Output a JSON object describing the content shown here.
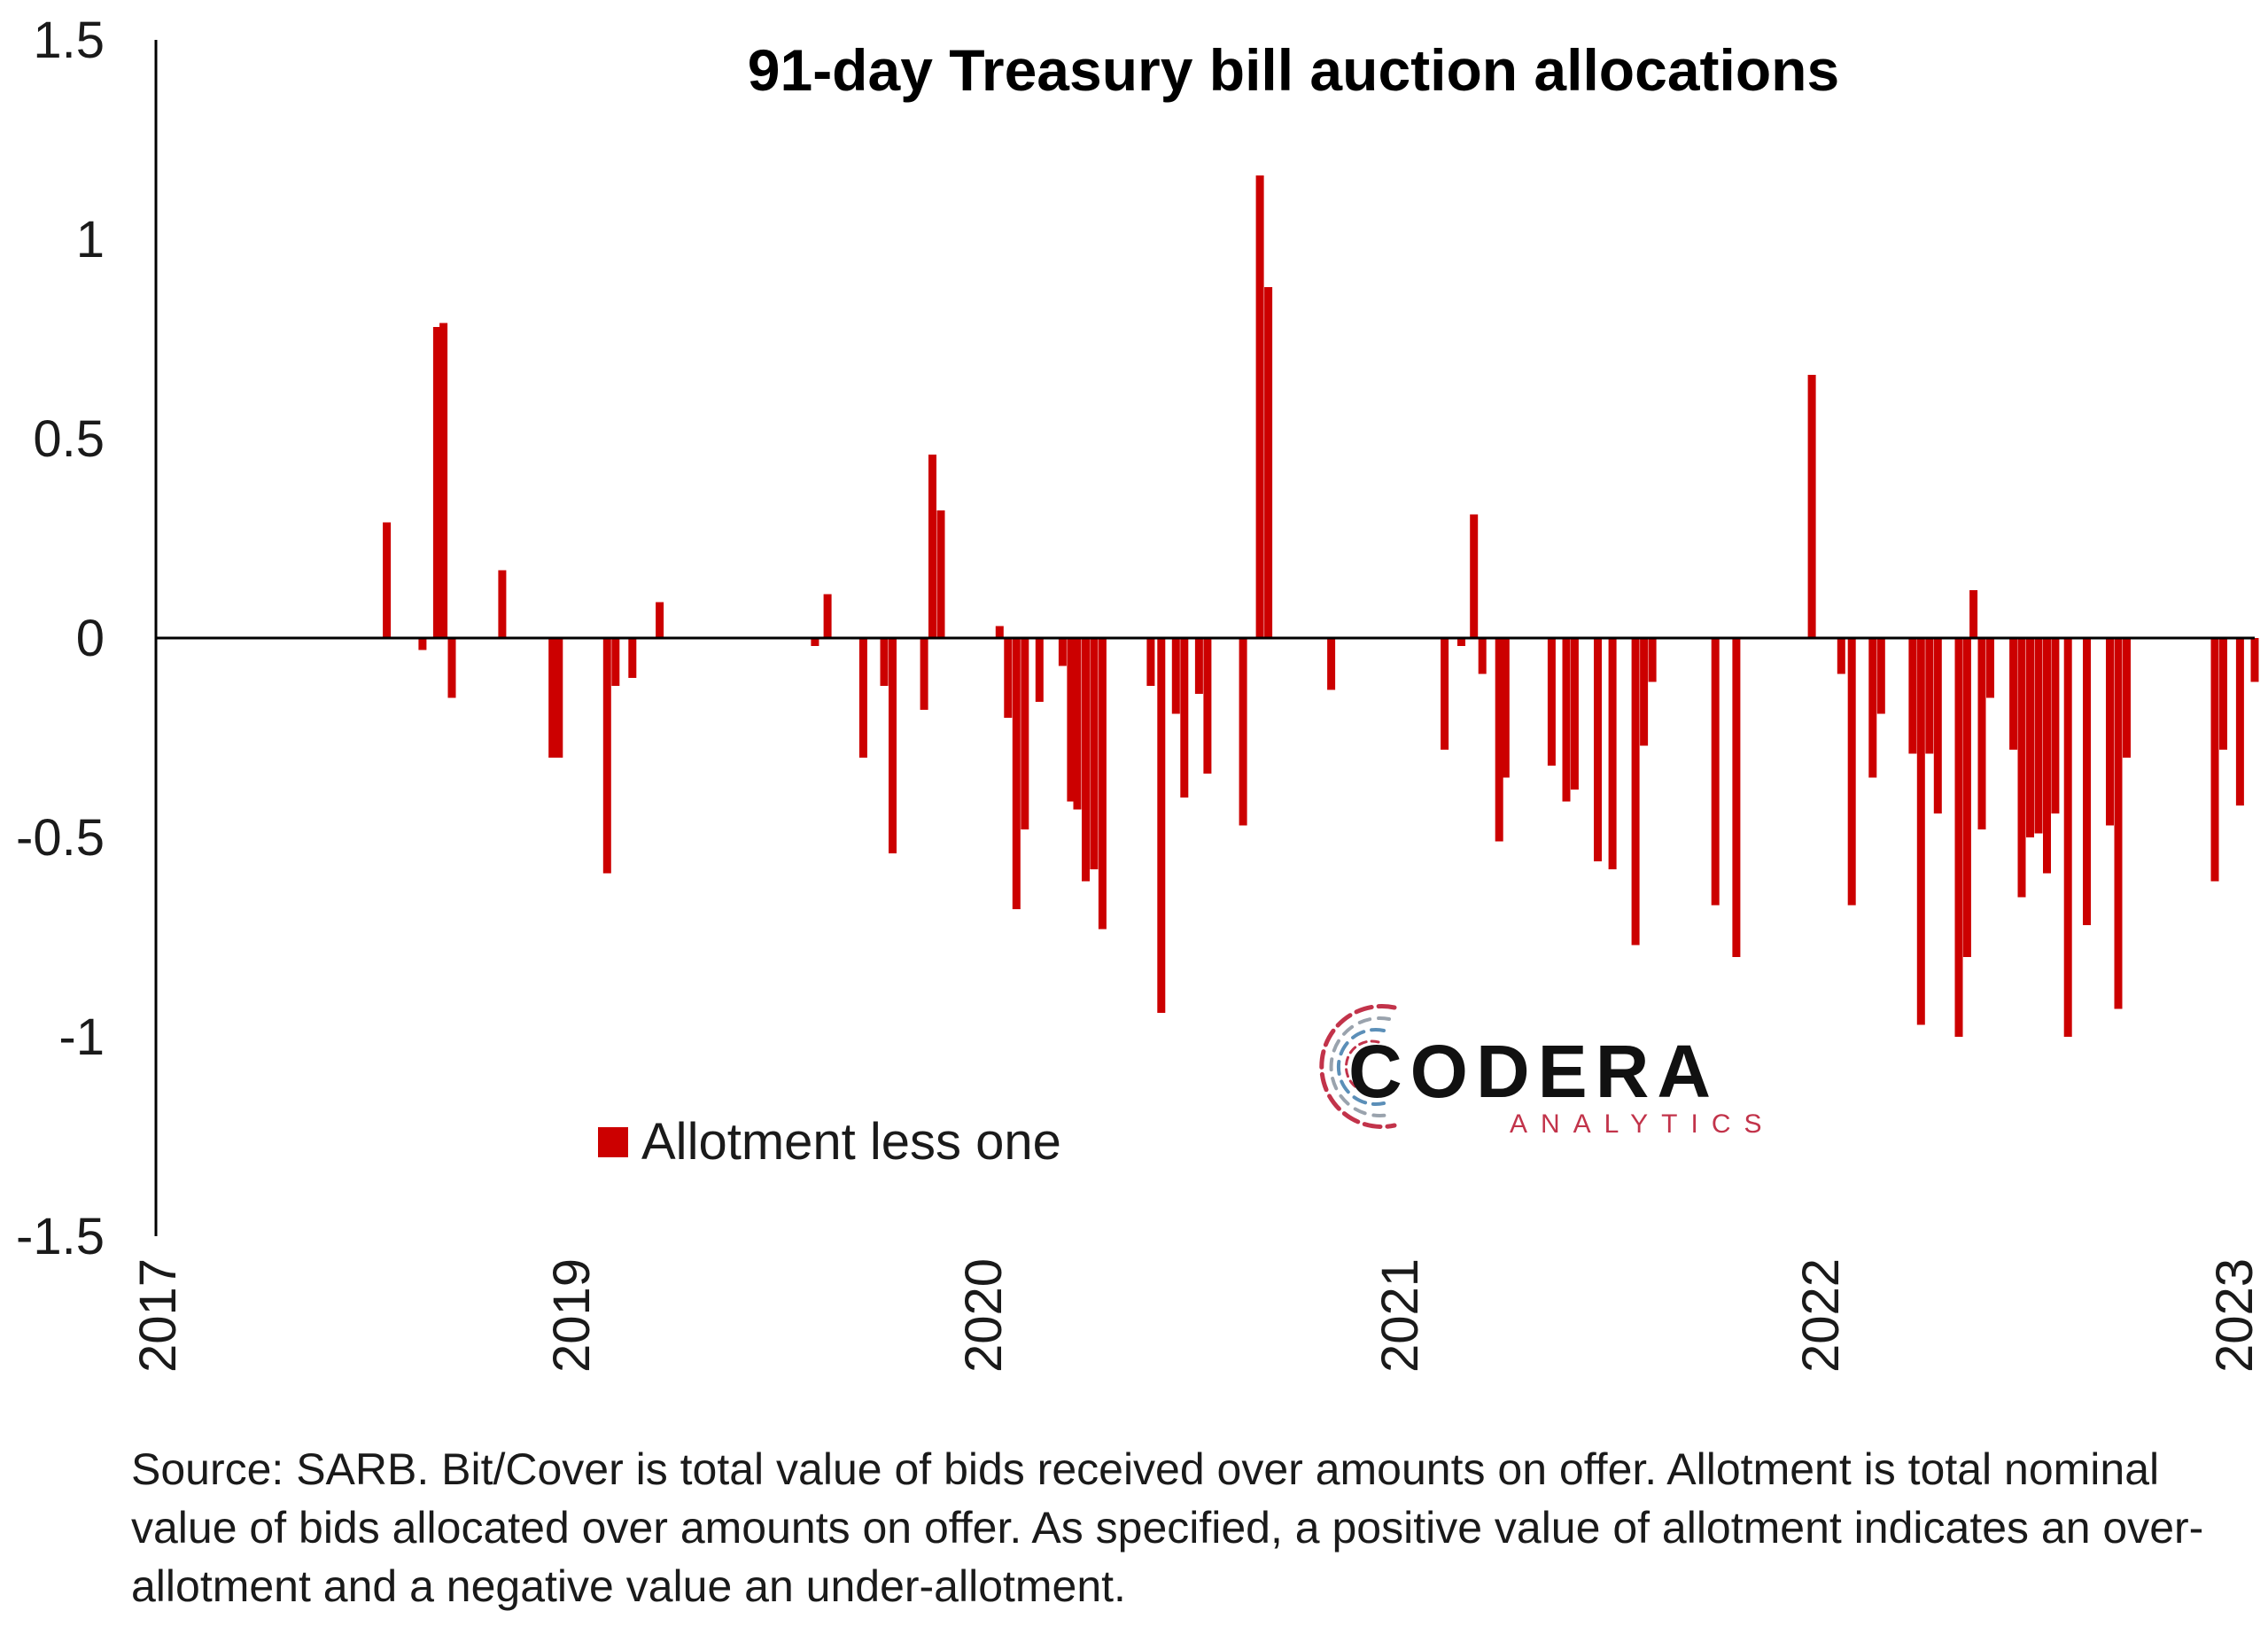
{
  "chart_data": {
    "type": "bar",
    "title": "91-day Treasury bill auction allocations",
    "xlabel": "",
    "ylabel": "",
    "ylim": [
      -1.5,
      1.5
    ],
    "yticks": [
      "1.5",
      "1",
      "0.5",
      "0",
      "-0.5",
      "-1",
      "-1.5"
    ],
    "x_tick_labels": [
      "2017",
      "2019",
      "2020",
      "2021",
      "2022",
      "2023"
    ],
    "grid": false,
    "legend_position": "bottom-left",
    "bar_color": "#cc0000",
    "series": [
      {
        "name": "Allotment less one",
        "points": [
          {
            "x": 0.11,
            "y": 0.29
          },
          {
            "x": 0.127,
            "y": -0.03
          },
          {
            "x": 0.134,
            "y": 0.78
          },
          {
            "x": 0.137,
            "y": 0.79
          },
          {
            "x": 0.141,
            "y": -0.15
          },
          {
            "x": 0.165,
            "y": 0.17
          },
          {
            "x": 0.189,
            "y": -0.3
          },
          {
            "x": 0.192,
            "y": -0.3
          },
          {
            "x": 0.215,
            "y": -0.59
          },
          {
            "x": 0.219,
            "y": -0.12
          },
          {
            "x": 0.227,
            "y": -0.1
          },
          {
            "x": 0.24,
            "y": 0.09
          },
          {
            "x": 0.314,
            "y": -0.02
          },
          {
            "x": 0.32,
            "y": 0.11
          },
          {
            "x": 0.337,
            "y": -0.3
          },
          {
            "x": 0.347,
            "y": -0.12
          },
          {
            "x": 0.351,
            "y": -0.54
          },
          {
            "x": 0.366,
            "y": -0.18
          },
          {
            "x": 0.37,
            "y": 0.46
          },
          {
            "x": 0.374,
            "y": 0.32
          },
          {
            "x": 0.402,
            "y": 0.03
          },
          {
            "x": 0.406,
            "y": -0.2
          },
          {
            "x": 0.41,
            "y": -0.68
          },
          {
            "x": 0.414,
            "y": -0.48
          },
          {
            "x": 0.421,
            "y": -0.16
          },
          {
            "x": 0.432,
            "y": -0.07
          },
          {
            "x": 0.436,
            "y": -0.41
          },
          {
            "x": 0.439,
            "y": -0.43
          },
          {
            "x": 0.443,
            "y": -0.61
          },
          {
            "x": 0.447,
            "y": -0.58
          },
          {
            "x": 0.451,
            "y": -0.73
          },
          {
            "x": 0.474,
            "y": -0.12
          },
          {
            "x": 0.479,
            "y": -0.94
          },
          {
            "x": 0.486,
            "y": -0.19
          },
          {
            "x": 0.49,
            "y": -0.4
          },
          {
            "x": 0.497,
            "y": -0.14
          },
          {
            "x": 0.501,
            "y": -0.34
          },
          {
            "x": 0.518,
            "y": -0.47
          },
          {
            "x": 0.526,
            "y": 1.16
          },
          {
            "x": 0.53,
            "y": 0.88
          },
          {
            "x": 0.56,
            "y": -0.13
          },
          {
            "x": 0.614,
            "y": -0.28
          },
          {
            "x": 0.622,
            "y": -0.02
          },
          {
            "x": 0.628,
            "y": 0.31
          },
          {
            "x": 0.632,
            "y": -0.09
          },
          {
            "x": 0.64,
            "y": -0.51
          },
          {
            "x": 0.643,
            "y": -0.35
          },
          {
            "x": 0.665,
            "y": -0.32
          },
          {
            "x": 0.672,
            "y": -0.41
          },
          {
            "x": 0.676,
            "y": -0.38
          },
          {
            "x": 0.687,
            "y": -0.56
          },
          {
            "x": 0.694,
            "y": -0.58
          },
          {
            "x": 0.705,
            "y": -0.77
          },
          {
            "x": 0.709,
            "y": -0.27
          },
          {
            "x": 0.713,
            "y": -0.11
          },
          {
            "x": 0.743,
            "y": -0.67
          },
          {
            "x": 0.753,
            "y": -0.8
          },
          {
            "x": 0.789,
            "y": 0.66
          },
          {
            "x": 0.803,
            "y": -0.09
          },
          {
            "x": 0.808,
            "y": -0.67
          },
          {
            "x": 0.818,
            "y": -0.35
          },
          {
            "x": 0.822,
            "y": -0.19
          },
          {
            "x": 0.837,
            "y": -0.29
          },
          {
            "x": 0.841,
            "y": -0.97
          },
          {
            "x": 0.845,
            "y": -0.29
          },
          {
            "x": 0.849,
            "y": -0.44
          },
          {
            "x": 0.859,
            "y": -1.0
          },
          {
            "x": 0.863,
            "y": -0.8
          },
          {
            "x": 0.866,
            "y": 0.12
          },
          {
            "x": 0.87,
            "y": -0.48
          },
          {
            "x": 0.874,
            "y": -0.15
          },
          {
            "x": 0.885,
            "y": -0.28
          },
          {
            "x": 0.889,
            "y": -0.65
          },
          {
            "x": 0.893,
            "y": -0.5
          },
          {
            "x": 0.897,
            "y": -0.49
          },
          {
            "x": 0.901,
            "y": -0.59
          },
          {
            "x": 0.905,
            "y": -0.44
          },
          {
            "x": 0.911,
            "y": -1.0
          },
          {
            "x": 0.92,
            "y": -0.72
          },
          {
            "x": 0.931,
            "y": -0.47
          },
          {
            "x": 0.935,
            "y": -0.93
          },
          {
            "x": 0.939,
            "y": -0.3
          },
          {
            "x": 0.981,
            "y": -0.61
          },
          {
            "x": 0.985,
            "y": -0.28
          },
          {
            "x": 0.993,
            "y": -0.42
          },
          {
            "x": 1.0,
            "y": -0.11
          }
        ]
      }
    ]
  },
  "source_note": "Source: SARB. Bit/Cover is total value of bids received over amounts on offer. Allotment is total nominal value of bids allocated over amounts on offer. As specified, a positive value of allotment indicates an over-allotment and a negative value an under-allotment.",
  "logo": {
    "name": "CODERA",
    "tagline": "ANALYTICS",
    "colors": {
      "text": "#111111",
      "tagline": "#c2334a",
      "arc_red": "#c2334a",
      "arc_blue": "#5b8fb8",
      "arc_grey": "#9aa3ad"
    }
  }
}
